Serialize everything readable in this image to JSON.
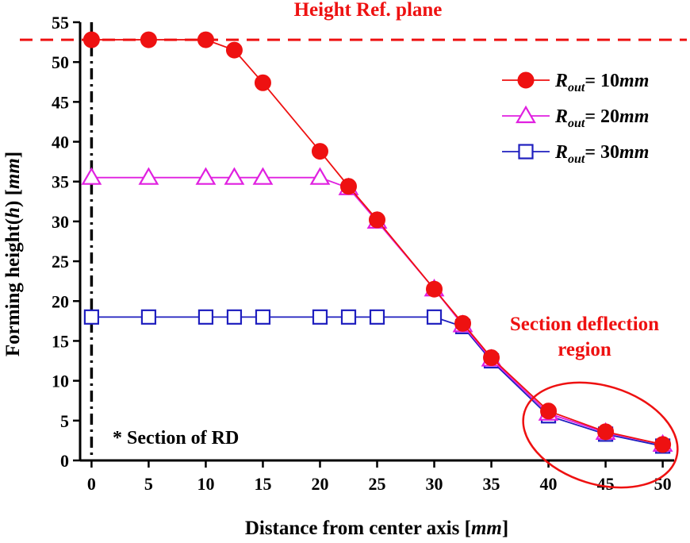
{
  "chart_data": {
    "type": "line",
    "title": "Height Ref. plane",
    "xlabel": {
      "main": "Distance from center axis [",
      "unit": "mm",
      "close": "]"
    },
    "ylabel": {
      "main": "Forming height(",
      "var": "h",
      "mid": ") [",
      "unit": "mm",
      "close": "]"
    },
    "xlim": [
      -1,
      51
    ],
    "ylim": [
      0,
      55
    ],
    "x_ticks": [
      0,
      5,
      10,
      15,
      20,
      25,
      30,
      35,
      40,
      45,
      50
    ],
    "y_ticks": [
      0,
      5,
      10,
      15,
      20,
      25,
      30,
      35,
      40,
      45,
      50,
      55
    ],
    "ref_plane_y": 52.8,
    "center_axis_x": 0,
    "series": [
      {
        "name": "R_out = 30mm",
        "legend": {
          "sym": "R",
          "sub": "out",
          "eq": "= 30",
          "unit": "mm"
        },
        "marker": "square",
        "color": "#1f1fbf",
        "x": [
          0,
          5,
          10,
          12.5,
          15,
          20,
          22.5,
          25,
          30,
          32.5,
          35,
          40,
          45,
          50
        ],
        "y": [
          18,
          18,
          18,
          18,
          18,
          18,
          18,
          18,
          18,
          16.8,
          12.5,
          5.6,
          3.3,
          1.8
        ]
      },
      {
        "name": "R_out = 20mm",
        "legend": {
          "sym": "R",
          "sub": "out",
          "eq": "= 20",
          "unit": "mm"
        },
        "marker": "triangle",
        "color": "#e020e0",
        "x": [
          0,
          5,
          10,
          12.5,
          15,
          20,
          22.5,
          25,
          30,
          32.5,
          35,
          40,
          45,
          50
        ],
        "y": [
          35.5,
          35.5,
          35.5,
          35.5,
          35.5,
          35.5,
          34.2,
          30,
          21.5,
          17,
          12.7,
          5.9,
          3.5,
          2
        ]
      },
      {
        "name": "R_out = 10mm",
        "legend": {
          "sym": "R",
          "sub": "out",
          "eq": "= 10",
          "unit": "mm"
        },
        "marker": "circle",
        "color": "#ee1111",
        "x": [
          0,
          5,
          10,
          12.5,
          15,
          20,
          22.5,
          25,
          30,
          32.5,
          35,
          40,
          45,
          50
        ],
        "y": [
          52.8,
          52.8,
          52.8,
          51.5,
          47.4,
          38.8,
          34.4,
          30.2,
          21.5,
          17.2,
          12.9,
          6.2,
          3.6,
          2
        ]
      }
    ],
    "annotations": {
      "section_note": "* Section of RD",
      "deflection_line1": "Section deflection",
      "deflection_line2": "region"
    },
    "colors": {
      "accent": "#ee1111",
      "axis": "#000000"
    }
  }
}
